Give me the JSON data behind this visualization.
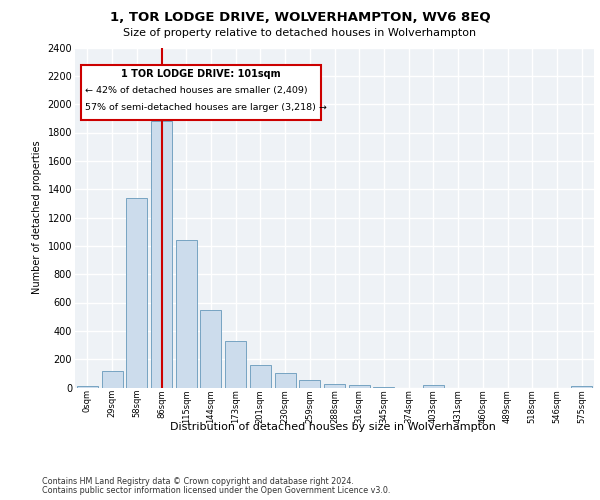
{
  "title": "1, TOR LODGE DRIVE, WOLVERHAMPTON, WV6 8EQ",
  "subtitle": "Size of property relative to detached houses in Wolverhampton",
  "xlabel": "Distribution of detached houses by size in Wolverhampton",
  "ylabel": "Number of detached properties",
  "footer_line1": "Contains HM Land Registry data © Crown copyright and database right 2024.",
  "footer_line2": "Contains public sector information licensed under the Open Government Licence v3.0.",
  "bar_labels": [
    "0sqm",
    "29sqm",
    "58sqm",
    "86sqm",
    "115sqm",
    "144sqm",
    "173sqm",
    "201sqm",
    "230sqm",
    "259sqm",
    "288sqm",
    "316sqm",
    "345sqm",
    "374sqm",
    "403sqm",
    "431sqm",
    "460sqm",
    "489sqm",
    "518sqm",
    "546sqm",
    "575sqm"
  ],
  "bar_values": [
    10,
    120,
    1340,
    1880,
    1040,
    550,
    330,
    160,
    105,
    50,
    28,
    18,
    5,
    0,
    20,
    0,
    0,
    0,
    0,
    0,
    10
  ],
  "bar_color": "#ccdcec",
  "bar_edge_color": "#6699bb",
  "ylim_max": 2400,
  "ytick_step": 200,
  "property_bin_index": 3,
  "annotation_title": "1 TOR LODGE DRIVE: 101sqm",
  "annotation_line2": "← 42% of detached houses are smaller (2,409)",
  "annotation_line3": "57% of semi-detached houses are larger (3,218) →",
  "vline_color": "#cc0000",
  "box_edge_color": "#cc0000",
  "plot_bg_color": "#eef2f6",
  "grid_color": "#ffffff"
}
